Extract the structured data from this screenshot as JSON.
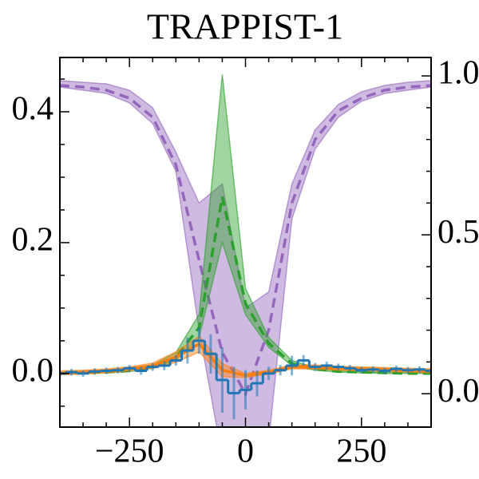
{
  "chart_data": {
    "type": "line",
    "title": "TRAPPIST-1",
    "xlim": [
      -400,
      400
    ],
    "xticks": [
      {
        "value": -250,
        "label": "−250"
      },
      0,
      250
    ],
    "xminorticks": [
      -400,
      -350,
      -300,
      -200,
      -150,
      -100,
      -50,
      50,
      100,
      150,
      200,
      300,
      350,
      400
    ],
    "ylim": [
      -0.082,
      0.483
    ],
    "yticks": [
      0.4,
      0.2,
      {
        "value": 0,
        "label": "0.0"
      }
    ],
    "yminorticks": [
      -0.05,
      0.05,
      0.1,
      0.15,
      0.25,
      0.3,
      0.35,
      0.45
    ],
    "y2lim": [
      -0.105,
      1.058
    ],
    "y2ticks": [
      {
        "value": 1,
        "label": "1.0"
      },
      0.5,
      {
        "value": 0,
        "label": "0.0"
      }
    ],
    "y2minorticks": [
      0.1,
      0.2,
      0.3,
      0.4,
      0.6,
      0.7,
      0.8,
      0.9
    ],
    "x": [
      -400,
      -350,
      -300,
      -250,
      -200,
      -150,
      -100,
      -50,
      0,
      50,
      100,
      150,
      200,
      250,
      300,
      350,
      400
    ],
    "series": [
      {
        "color": "#9467bd",
        "axis": "y2",
        "style": "dashed",
        "values": [
          0.97,
          0.965,
          0.955,
          0.93,
          0.87,
          0.72,
          0.42,
          0.13,
          0.0,
          0.2,
          0.6,
          0.8,
          0.89,
          0.93,
          0.955,
          0.965,
          0.97
        ],
        "upper": [
          0.985,
          0.98,
          0.975,
          0.955,
          0.9,
          0.76,
          0.6,
          0.66,
          0.27,
          0.32,
          0.66,
          0.83,
          0.91,
          0.95,
          0.97,
          0.98,
          0.985
        ],
        "lower": [
          0.965,
          0.955,
          0.945,
          0.915,
          0.85,
          0.7,
          0.2,
          -0.2,
          -0.3,
          -0.15,
          0.55,
          0.77,
          0.87,
          0.92,
          0.945,
          0.955,
          0.965
        ]
      },
      {
        "color": "#2ca02c",
        "axis": "y",
        "style": "dashed",
        "values": [
          0.0,
          0.001,
          0.002,
          0.004,
          0.01,
          0.025,
          0.07,
          0.27,
          0.107,
          0.046,
          0.015,
          0.007,
          0.003,
          0.002,
          0.001,
          0.0,
          0.0
        ],
        "upper": [
          0.001,
          0.002,
          0.003,
          0.006,
          0.013,
          0.032,
          0.09,
          0.457,
          0.13,
          0.055,
          0.02,
          0.009,
          0.004,
          0.003,
          0.002,
          0.001,
          0.001
        ],
        "lower": [
          0.0,
          0.0,
          0.001,
          0.003,
          0.008,
          0.02,
          0.055,
          0.2,
          0.09,
          0.04,
          0.012,
          0.005,
          0.002,
          0.001,
          0.0,
          0.0,
          0.0
        ]
      },
      {
        "color": "#ff7f0e",
        "axis": "y",
        "style": "solid",
        "values": [
          0.001,
          0.002,
          0.004,
          0.007,
          0.012,
          0.025,
          0.045,
          0.005,
          -0.003,
          0.002,
          0.01,
          0.01,
          0.008,
          0.007,
          0.006,
          0.005,
          0.004
        ],
        "upper": [
          0.004,
          0.005,
          0.007,
          0.01,
          0.016,
          0.033,
          0.057,
          0.015,
          0.0,
          0.005,
          0.013,
          0.013,
          0.011,
          0.01,
          0.009,
          0.008,
          0.007
        ],
        "lower": [
          -0.002,
          -0.001,
          0.001,
          0.004,
          0.008,
          0.017,
          0.033,
          -0.005,
          -0.006,
          -0.001,
          0.007,
          0.007,
          0.005,
          0.004,
          0.003,
          0.002,
          0.001
        ]
      }
    ],
    "observed": {
      "color": "#1f77b4",
      "axis": "y",
      "style": "step",
      "x": [
        -400,
        -375,
        -350,
        -325,
        -300,
        -275,
        -250,
        -225,
        -200,
        -175,
        -150,
        -125,
        -100,
        -75,
        -50,
        -25,
        0,
        25,
        50,
        75,
        100,
        125,
        150,
        175,
        200,
        225,
        250,
        275,
        300,
        325,
        350,
        375,
        400
      ],
      "values": [
        0.0,
        0.002,
        0.0,
        0.003,
        0.004,
        0.005,
        0.008,
        0.004,
        0.01,
        0.012,
        0.02,
        0.035,
        0.05,
        0.03,
        -0.01,
        -0.03,
        -0.025,
        -0.015,
        0.0,
        0.005,
        0.012,
        0.02,
        0.01,
        0.012,
        0.01,
        0.008,
        0.005,
        0.006,
        0.004,
        0.007,
        0.005,
        0.006,
        0.004
      ],
      "errors": [
        0.005,
        0.005,
        0.005,
        0.005,
        0.005,
        0.005,
        0.005,
        0.006,
        0.006,
        0.007,
        0.008,
        0.02,
        0.02,
        0.03,
        0.05,
        0.04,
        0.03,
        0.02,
        0.01,
        0.008,
        0.015,
        0.008,
        0.006,
        0.006,
        0.005,
        0.005,
        0.005,
        0.005,
        0.005,
        0.005,
        0.005,
        0.005,
        0.005
      ]
    }
  }
}
